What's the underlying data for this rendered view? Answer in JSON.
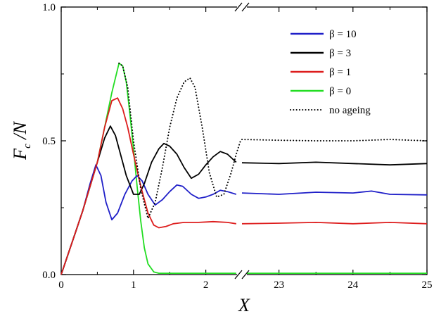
{
  "chart_data": {
    "type": "line",
    "xlabel": "X",
    "ylabel": {
      "main": "F",
      "sub": "c",
      "rest": " /N"
    },
    "ylim": [
      0,
      1.0
    ],
    "y_ticks": [
      "0.0",
      "0.5",
      "1.0"
    ],
    "x_axis": {
      "broken": true,
      "left_segment": {
        "range": [
          0,
          2.5
        ],
        "ticks": [
          "0",
          "1",
          "2"
        ]
      },
      "right_segment": {
        "range": [
          22.5,
          25
        ],
        "ticks": [
          "23",
          "24",
          "25"
        ]
      }
    },
    "legend_position": "top-right",
    "series": [
      {
        "name": "β = 10",
        "color": "#1f1fc8",
        "style": "solid",
        "points": [
          [
            0,
            0
          ],
          [
            0.1,
            0.08
          ],
          [
            0.2,
            0.16
          ],
          [
            0.3,
            0.24
          ],
          [
            0.4,
            0.34
          ],
          [
            0.48,
            0.41
          ],
          [
            0.55,
            0.37
          ],
          [
            0.62,
            0.27
          ],
          [
            0.7,
            0.205
          ],
          [
            0.78,
            0.23
          ],
          [
            0.88,
            0.3
          ],
          [
            0.98,
            0.35
          ],
          [
            1.05,
            0.37
          ],
          [
            1.12,
            0.35
          ],
          [
            1.2,
            0.3
          ],
          [
            1.3,
            0.26
          ],
          [
            1.4,
            0.28
          ],
          [
            1.5,
            0.31
          ],
          [
            1.6,
            0.335
          ],
          [
            1.68,
            0.33
          ],
          [
            1.8,
            0.3
          ],
          [
            1.9,
            0.285
          ],
          [
            2.0,
            0.29
          ],
          [
            2.1,
            0.3
          ],
          [
            2.2,
            0.315
          ],
          [
            2.3,
            0.31
          ],
          [
            2.42,
            0.3
          ]
        ],
        "tail": [
          [
            22.5,
            0.305
          ],
          [
            23,
            0.3
          ],
          [
            23.5,
            0.308
          ],
          [
            24,
            0.305
          ],
          [
            24.25,
            0.312
          ],
          [
            24.5,
            0.3
          ],
          [
            25,
            0.298
          ]
        ]
      },
      {
        "name": "β = 3",
        "color": "#000000",
        "style": "solid",
        "points": [
          [
            0,
            0
          ],
          [
            0.1,
            0.08
          ],
          [
            0.2,
            0.16
          ],
          [
            0.3,
            0.24
          ],
          [
            0.4,
            0.33
          ],
          [
            0.5,
            0.42
          ],
          [
            0.6,
            0.51
          ],
          [
            0.68,
            0.555
          ],
          [
            0.75,
            0.52
          ],
          [
            0.82,
            0.45
          ],
          [
            0.9,
            0.37
          ],
          [
            1.0,
            0.3
          ],
          [
            1.08,
            0.3
          ],
          [
            1.15,
            0.34
          ],
          [
            1.25,
            0.42
          ],
          [
            1.35,
            0.47
          ],
          [
            1.42,
            0.49
          ],
          [
            1.5,
            0.48
          ],
          [
            1.6,
            0.45
          ],
          [
            1.7,
            0.4
          ],
          [
            1.8,
            0.36
          ],
          [
            1.9,
            0.375
          ],
          [
            2.0,
            0.41
          ],
          [
            2.1,
            0.44
          ],
          [
            2.2,
            0.46
          ],
          [
            2.3,
            0.45
          ],
          [
            2.42,
            0.42
          ]
        ],
        "tail": [
          [
            22.5,
            0.418
          ],
          [
            23,
            0.415
          ],
          [
            23.5,
            0.42
          ],
          [
            24,
            0.415
          ],
          [
            24.5,
            0.41
          ],
          [
            25,
            0.415
          ]
        ]
      },
      {
        "name": "β = 1",
        "color": "#dd1c1c",
        "style": "solid",
        "points": [
          [
            0,
            0
          ],
          [
            0.1,
            0.08
          ],
          [
            0.2,
            0.16
          ],
          [
            0.3,
            0.24
          ],
          [
            0.4,
            0.33
          ],
          [
            0.5,
            0.42
          ],
          [
            0.6,
            0.55
          ],
          [
            0.7,
            0.65
          ],
          [
            0.78,
            0.66
          ],
          [
            0.85,
            0.62
          ],
          [
            0.92,
            0.55
          ],
          [
            1.0,
            0.45
          ],
          [
            1.1,
            0.33
          ],
          [
            1.2,
            0.23
          ],
          [
            1.28,
            0.185
          ],
          [
            1.35,
            0.175
          ],
          [
            1.45,
            0.18
          ],
          [
            1.55,
            0.19
          ],
          [
            1.7,
            0.195
          ],
          [
            1.9,
            0.195
          ],
          [
            2.1,
            0.198
          ],
          [
            2.3,
            0.195
          ],
          [
            2.42,
            0.19
          ]
        ],
        "tail": [
          [
            22.5,
            0.19
          ],
          [
            23,
            0.192
          ],
          [
            23.5,
            0.195
          ],
          [
            24,
            0.19
          ],
          [
            24.5,
            0.195
          ],
          [
            25,
            0.19
          ]
        ]
      },
      {
        "name": "β = 0",
        "color": "#22dd22",
        "style": "solid",
        "points": [
          [
            0,
            0
          ],
          [
            0.1,
            0.08
          ],
          [
            0.2,
            0.16
          ],
          [
            0.3,
            0.24
          ],
          [
            0.4,
            0.33
          ],
          [
            0.5,
            0.42
          ],
          [
            0.6,
            0.55
          ],
          [
            0.7,
            0.68
          ],
          [
            0.8,
            0.79
          ],
          [
            0.85,
            0.78
          ],
          [
            0.9,
            0.72
          ],
          [
            0.95,
            0.6
          ],
          [
            1.0,
            0.47
          ],
          [
            1.05,
            0.33
          ],
          [
            1.1,
            0.2
          ],
          [
            1.15,
            0.1
          ],
          [
            1.2,
            0.04
          ],
          [
            1.28,
            0.01
          ],
          [
            1.35,
            0.005
          ],
          [
            1.5,
            0.005
          ],
          [
            2.42,
            0.005
          ]
        ],
        "tail": [
          [
            22.5,
            0.005
          ],
          [
            25,
            0.005
          ]
        ]
      },
      {
        "name": "no ageing",
        "color": "#000000",
        "style": "dotted",
        "points": [
          [
            0.8,
            0.79
          ],
          [
            0.85,
            0.78
          ],
          [
            0.92,
            0.7
          ],
          [
            1.0,
            0.5
          ],
          [
            1.1,
            0.32
          ],
          [
            1.2,
            0.21
          ],
          [
            1.3,
            0.27
          ],
          [
            1.4,
            0.4
          ],
          [
            1.5,
            0.55
          ],
          [
            1.6,
            0.66
          ],
          [
            1.7,
            0.72
          ],
          [
            1.78,
            0.735
          ],
          [
            1.85,
            0.7
          ],
          [
            1.95,
            0.55
          ],
          [
            2.05,
            0.38
          ],
          [
            2.15,
            0.29
          ],
          [
            2.25,
            0.3
          ],
          [
            2.35,
            0.38
          ],
          [
            2.42,
            0.45
          ],
          [
            2.48,
            0.5
          ]
        ],
        "tail": [
          [
            22.5,
            0.505
          ],
          [
            23,
            0.502
          ],
          [
            23.5,
            0.5
          ],
          [
            24,
            0.5
          ],
          [
            24.5,
            0.505
          ],
          [
            25,
            0.5
          ]
        ]
      }
    ]
  }
}
